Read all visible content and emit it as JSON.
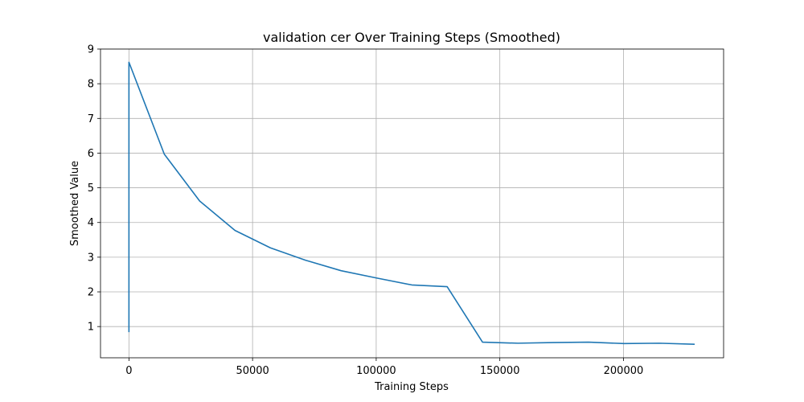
{
  "chart_data": {
    "type": "line",
    "title": "validation cer Over Training Steps (Smoothed)",
    "xlabel": "Training Steps",
    "ylabel": "Smoothed Value",
    "xlim": [
      -11500,
      240500
    ],
    "ylim": [
      0.1,
      9.0
    ],
    "xticks": [
      0,
      50000,
      100000,
      150000,
      200000
    ],
    "yticks": [
      1,
      2,
      3,
      4,
      5,
      6,
      7,
      8,
      9
    ],
    "grid": true,
    "series": [
      {
        "name": "",
        "color": "#1f77b4",
        "x": [
          0,
          0,
          14300,
          28600,
          42900,
          57200,
          71500,
          85800,
          100100,
          114400,
          128700,
          143000,
          157300,
          171600,
          185900,
          200200,
          214500,
          228800
        ],
        "y": [
          0.84,
          8.62,
          5.97,
          4.62,
          3.77,
          3.27,
          2.91,
          2.61,
          2.4,
          2.2,
          2.15,
          0.55,
          0.52,
          0.54,
          0.55,
          0.51,
          0.52,
          0.49
        ]
      }
    ]
  }
}
